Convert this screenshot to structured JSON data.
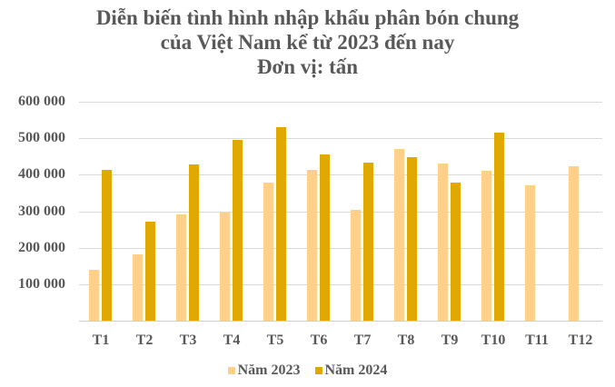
{
  "title": {
    "line1": "Diễn biến tình hình nhập khẩu phân bón chung",
    "line2": "của Việt Nam kể từ 2023 đến nay",
    "line3": "Đơn vị: tấn"
  },
  "colors": {
    "series_2023": "#FFD08A",
    "series_2024": "#E1A900",
    "grid": "#d9d9d9",
    "text": "#595959"
  },
  "legend": [
    {
      "label": "Năm 2023",
      "color": "#FFD08A"
    },
    {
      "label": "Năm 2024",
      "color": "#E1A900"
    }
  ],
  "y_ticks": [
    "600 000",
    "500 000",
    "400 000",
    "300 000",
    "200 000",
    "100 000"
  ],
  "chart_data": {
    "type": "bar",
    "title": "Diễn biến tình hình nhập khẩu phân bón chung của Việt Nam kể từ 2023 đến nay (Đơn vị: tấn)",
    "xlabel": "",
    "ylabel": "tấn",
    "categories": [
      "T1",
      "T2",
      "T3",
      "T4",
      "T5",
      "T6",
      "T7",
      "T8",
      "T9",
      "T10",
      "T11",
      "T12"
    ],
    "series": [
      {
        "name": "Năm 2023",
        "values": [
          140000,
          183000,
          292000,
          297000,
          379000,
          414000,
          304000,
          471000,
          431000,
          411000,
          372000,
          424000
        ]
      },
      {
        "name": "Năm 2024",
        "values": [
          414000,
          272000,
          429000,
          496000,
          531000,
          456000,
          434000,
          449000,
          379000,
          516000,
          null,
          null
        ]
      }
    ],
    "ylim": [
      0,
      600000
    ],
    "y_tick_values": [
      0,
      100000,
      200000,
      300000,
      400000,
      500000,
      600000
    ],
    "grid": true,
    "legend_position": "bottom"
  }
}
